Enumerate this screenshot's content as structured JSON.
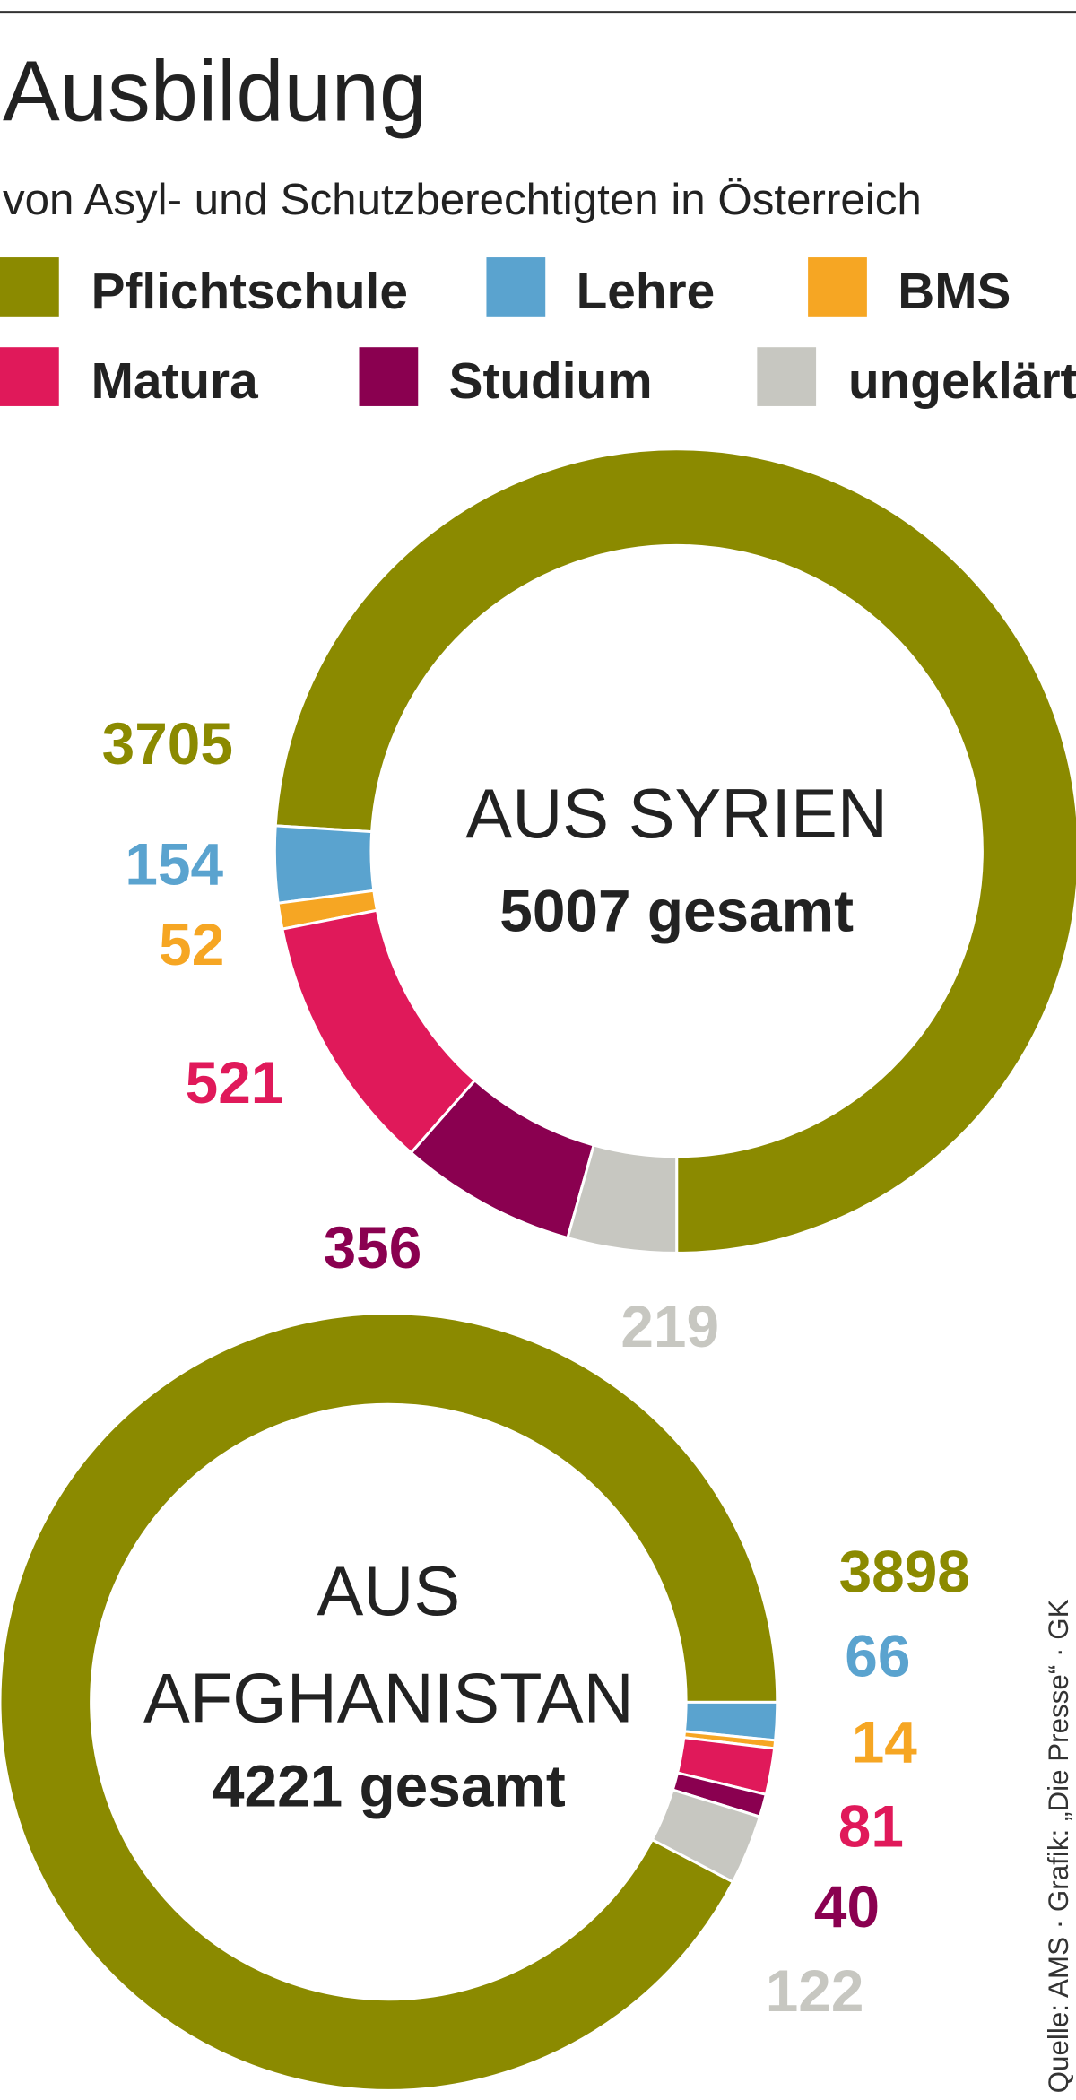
{
  "title": "Ausbildung",
  "subtitle": "von Asyl- und Schutzberechtigten in Österreich",
  "source": "Quelle: AMS · Grafik: „Die Presse“ · GK",
  "legend": {
    "categories": [
      "Pflichtschule",
      "Lehre",
      "BMS",
      "Matura",
      "Studium",
      "ungeklärt"
    ],
    "colors": [
      "#8b8a00",
      "#5aa3cf",
      "#f6a623",
      "#e0195a",
      "#8a0050",
      "#c7c7c1"
    ]
  },
  "chart_data": [
    {
      "type": "donut",
      "title": [
        "AUS SYRIEN"
      ],
      "total_label": "5007 gesamt",
      "values": [
        3705,
        154,
        52,
        521,
        356,
        219
      ]
    },
    {
      "type": "donut",
      "title": [
        "AUS",
        "AFGHANISTAN"
      ],
      "total_label": "4221 gesamt",
      "values": [
        3898,
        66,
        14,
        81,
        40,
        122
      ]
    }
  ]
}
